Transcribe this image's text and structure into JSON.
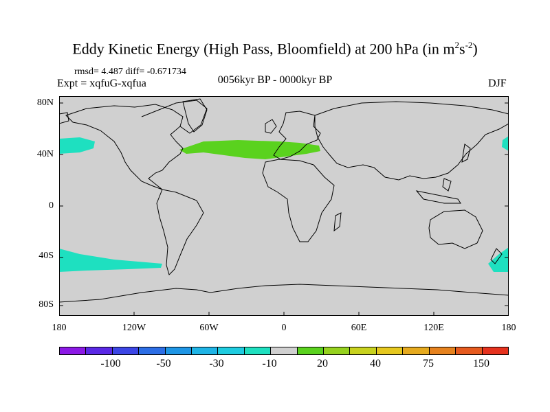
{
  "header": {
    "title_main": "Eddy Kinetic Energy (High Pass, Bloomfield) at 200 hPa (in m",
    "title_sup1": "2",
    "title_mid": "s",
    "title_sup2": "-2",
    "title_end": ")",
    "stats": "rmsd= 4.487 diff= -0.671734",
    "experiment": "Expt = xqfuG-xqfua",
    "period": "0056kyr BP - 0000kyr BP",
    "season": "DJF"
  },
  "axes": {
    "lat_labels": [
      "80N",
      "40N",
      "0",
      "40S",
      "80S"
    ],
    "lon_labels": [
      "180",
      "120W",
      "60W",
      "0",
      "60E",
      "120E",
      "180"
    ]
  },
  "colorbar": {
    "colors": [
      "#8c19e6",
      "#5a28e6",
      "#3c46e6",
      "#2c6ee6",
      "#1e96e6",
      "#1eb4e6",
      "#1ecce0",
      "#1ee0c0",
      "#d0d0d0",
      "#5ad21e",
      "#96d21e",
      "#c8d21e",
      "#e6c81e",
      "#e6aa1e",
      "#e6821e",
      "#e65a1e",
      "#e6321e"
    ],
    "labels": [
      "-100",
      "-50",
      "-30",
      "-10",
      "20",
      "40",
      "75",
      "150"
    ]
  },
  "map": {
    "background_color": "#d0d0d0",
    "positive_color": "#5ad21e",
    "negative_color": "#1ee0c0"
  }
}
